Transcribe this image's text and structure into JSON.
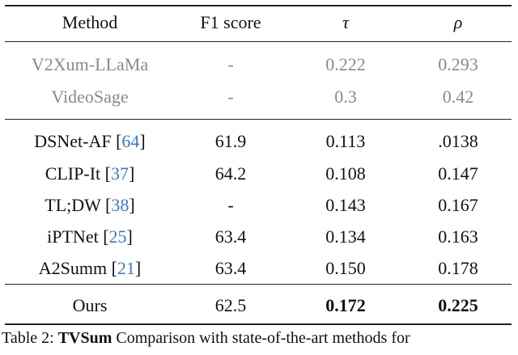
{
  "table": {
    "headers": [
      "Method",
      "F1 score",
      "τ",
      "ρ"
    ],
    "group1": [
      {
        "method": "V2Xum-LLaMa",
        "f1": "-",
        "tau": "0.222",
        "rho": "0.293"
      },
      {
        "method": "VideoSage",
        "f1": "-",
        "tau": "0.3",
        "rho": "0.42"
      }
    ],
    "group2": [
      {
        "method": "DSNet-AF",
        "ref": "64",
        "f1": "61.9",
        "tau": "0.113",
        "rho": ".0138"
      },
      {
        "method": "CLIP-It",
        "ref": "37",
        "f1": "64.2",
        "tau": "0.108",
        "rho": "0.147"
      },
      {
        "method": "TL;DW",
        "ref": "38",
        "f1": "-",
        "tau": "0.143",
        "rho": "0.167"
      },
      {
        "method": "iPTNet",
        "ref": "25",
        "f1": "63.4",
        "tau": "0.134",
        "rho": "0.163"
      },
      {
        "method": "A2Summ",
        "ref": "21",
        "f1": "63.4",
        "tau": "0.150",
        "rho": "0.178"
      }
    ],
    "ours": {
      "method": "Ours",
      "f1": "62.5",
      "tau": "0.172",
      "rho": "0.225"
    }
  },
  "caption": {
    "prefix": "Table 2:",
    "dataset": "TVSum",
    "text": "Comparison with state-of-the-art methods for"
  },
  "colors": {
    "reference_link": "#3b78c2",
    "muted_text": "#8a8a8a"
  }
}
